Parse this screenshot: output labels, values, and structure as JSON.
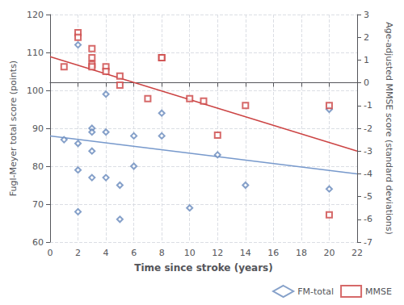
{
  "chart_data": {
    "type": "scatter",
    "xlabel": "Time since stroke (years)",
    "ylabel": "Fugl-Meyer total score (points)",
    "y2label": "Age-adjusted MMSE score (standard deviations)",
    "xlim": [
      0,
      22
    ],
    "xticks": [
      0,
      2,
      4,
      6,
      8,
      10,
      12,
      14,
      16,
      18,
      20,
      22
    ],
    "ylim": [
      60,
      120
    ],
    "yticks": [
      60,
      70,
      80,
      90,
      100,
      110,
      120
    ],
    "y2lim": [
      -7,
      3
    ],
    "y2ticks": [
      -7,
      -6,
      -5,
      -4,
      -3,
      -2,
      -1,
      0,
      1,
      2,
      3
    ],
    "grid": true,
    "legend": "lower right",
    "series": [
      {
        "name": "FM-total",
        "type": "scatter",
        "marker": "diamond",
        "color": "#6688bb",
        "x": [
          1,
          2,
          2,
          2,
          2,
          3,
          3,
          3,
          3,
          4,
          4,
          4,
          5,
          5,
          6,
          6,
          8,
          8,
          10,
          12,
          14,
          20,
          20
        ],
        "values": [
          87,
          68,
          79,
          112,
          86,
          90,
          89,
          84,
          77,
          99,
          89,
          77,
          75,
          66,
          80,
          88,
          94,
          88,
          69,
          83,
          75,
          74,
          95
        ]
      },
      {
        "type": "line",
        "color": "#7799cc",
        "x": [
          0,
          22
        ],
        "values": [
          88.0,
          78.0
        ]
      },
      {
        "name": "MMSE",
        "type": "scatter",
        "marker": "square",
        "color": "#cc4444",
        "axis": "y2",
        "x": [
          1,
          2,
          2,
          3,
          3,
          3,
          3,
          4,
          4,
          5,
          5,
          7,
          8,
          8,
          10,
          11,
          12,
          14,
          20,
          20
        ],
        "values": [
          0.7,
          2.2,
          2.0,
          1.5,
          1.1,
          0.8,
          0.7,
          0.7,
          0.5,
          0.3,
          -0.1,
          -0.7,
          1.1,
          1.1,
          -0.7,
          -0.8,
          -2.3,
          -1.0,
          -1.0,
          -5.8
        ]
      },
      {
        "type": "line",
        "color": "#cc4444",
        "axis": "y2",
        "x": [
          0,
          22
        ],
        "values": [
          1.15,
          -3.0
        ]
      }
    ]
  }
}
